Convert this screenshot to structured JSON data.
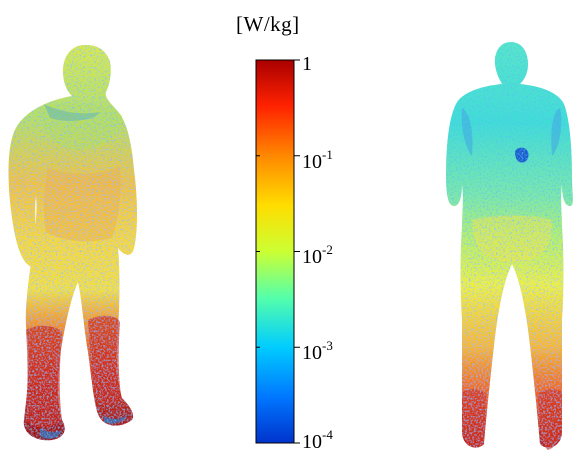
{
  "colorbar": {
    "unit": "[W/kg]",
    "scale": "log",
    "range": [
      0.0001,
      1
    ],
    "colormap": "jet",
    "ticks": [
      {
        "value": 1,
        "base": "1",
        "exponent": ""
      },
      {
        "value": 0.1,
        "base": "10",
        "exponent": "-1"
      },
      {
        "value": 0.01,
        "base": "10",
        "exponent": "-2"
      },
      {
        "value": 0.001,
        "base": "10",
        "exponent": "-3"
      },
      {
        "value": 0.0001,
        "base": "10",
        "exponent": "-4"
      }
    ]
  },
  "figures": [
    {
      "name": "front-view-body",
      "view": "front"
    },
    {
      "name": "back-view-body",
      "view": "back"
    }
  ],
  "colors": {
    "jet_dark_red": "#7f0000",
    "jet_red": "#ff0000",
    "jet_orange": "#ff8c00",
    "jet_yellow": "#ffff00",
    "jet_cyan": "#00ffff",
    "jet_blue": "#0050ff",
    "jet_dark_blue": "#0000a0"
  }
}
